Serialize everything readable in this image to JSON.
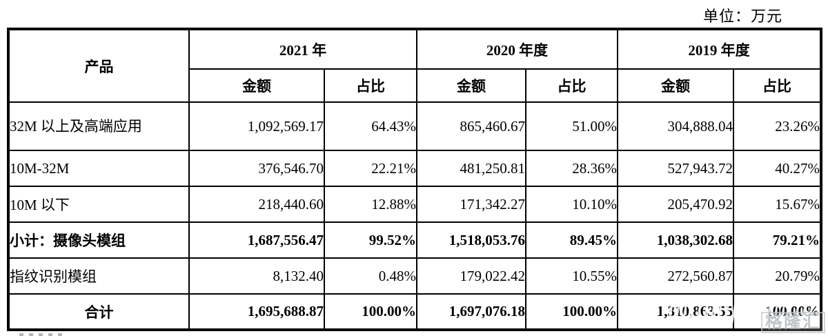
{
  "unit_label": "单位：万元",
  "table": {
    "product_header": "产品",
    "year_groups": [
      {
        "label": "2021 年",
        "sub": [
          "金额",
          "占比"
        ]
      },
      {
        "label": "2020 年度",
        "sub": [
          "金额",
          "占比"
        ]
      },
      {
        "label": "2019 年度",
        "sub": [
          "金额",
          "占比"
        ]
      }
    ],
    "rows": [
      {
        "product": "32M 以上及高端应用",
        "values": [
          "1,092,569.17",
          "64.43%",
          "865,460.67",
          "51.00%",
          "304,888.04",
          "23.26%"
        ]
      },
      {
        "product": "10M-32M",
        "values": [
          "376,546.70",
          "22.21%",
          "481,250.81",
          "28.36%",
          "527,943.72",
          "40.27%"
        ]
      },
      {
        "product": "10M 以下",
        "values": [
          "218,440.60",
          "12.88%",
          "171,342.27",
          "10.10%",
          "205,470.92",
          "15.67%"
        ]
      },
      {
        "product": "小计：摄像头模组",
        "values": [
          "1,687,556.47",
          "99.52%",
          "1,518,053.76",
          "89.45%",
          "1,038,302.68",
          "79.21%"
        ]
      },
      {
        "product": "指纹识别模组",
        "values": [
          "8,132.40",
          "0.48%",
          "179,022.42",
          "10.55%",
          "272,560.87",
          "20.79%"
        ]
      },
      {
        "product": "合计",
        "values": [
          "1,695,688.87",
          "100.00%",
          "1,697,076.18",
          "100.00%",
          "1,310,863.55",
          "100.00%"
        ]
      }
    ]
  },
  "watermark": {
    "text": "格隆汇"
  }
}
